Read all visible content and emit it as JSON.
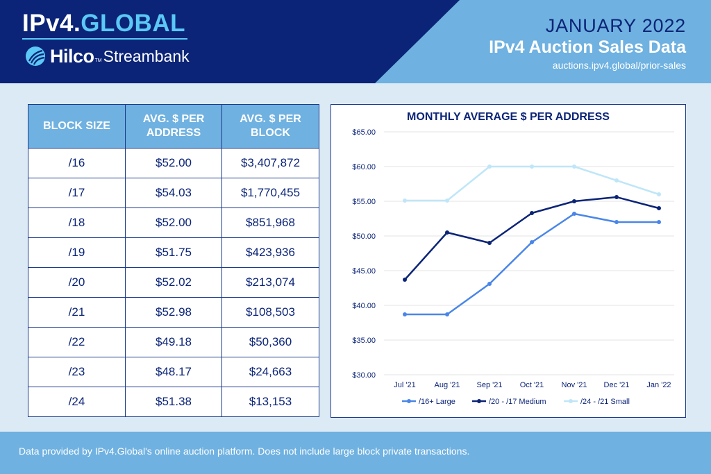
{
  "header": {
    "brand_main": "IPv4.",
    "brand_accent": "GLOBAL",
    "partner_name": "Hilco",
    "partner_tm": "TM",
    "partner_sub": "Streambank",
    "month": "JANUARY 2022",
    "title": "IPv4 Auction Sales Data",
    "url": "auctions.ipv4.global/prior-sales"
  },
  "table": {
    "headers": [
      "BLOCK SIZE",
      "AVG. $ PER ADDRESS",
      "AVG. $ PER BLOCK"
    ],
    "rows": [
      [
        "/16",
        "$52.00",
        "$3,407,872"
      ],
      [
        "/17",
        "$54.03",
        "$1,770,455"
      ],
      [
        "/18",
        "$52.00",
        "$851,968"
      ],
      [
        "/19",
        "$51.75",
        "$423,936"
      ],
      [
        "/20",
        "$52.02",
        "$213,074"
      ],
      [
        "/21",
        "$52.98",
        "$108,503"
      ],
      [
        "/22",
        "$49.18",
        "$50,360"
      ],
      [
        "/23",
        "$48.17",
        "$24,663"
      ],
      [
        "/24",
        "$51.38",
        "$13,153"
      ]
    ]
  },
  "chart_data": {
    "type": "line",
    "title": "MONTHLY AVERAGE $ PER ADDRESS",
    "xlabel": "",
    "ylabel": "",
    "categories": [
      "Jul '21",
      "Aug '21",
      "Sep '21",
      "Oct '21",
      "Nov '21",
      "Dec '21",
      "Jan '22"
    ],
    "ylim": [
      30,
      65
    ],
    "yticks": [
      "$30.00",
      "$35.00",
      "$40.00",
      "$45.00",
      "$50.00",
      "$55.00",
      "$60.00",
      "$65.00"
    ],
    "grid": true,
    "legend_position": "bottom",
    "series": [
      {
        "name": "/16+ Large",
        "color": "#4a86e8",
        "values": [
          38.7,
          38.7,
          43.1,
          49.1,
          53.2,
          52.0,
          52.0
        ]
      },
      {
        "name": "/20 - /17 Medium",
        "color": "#0b2477",
        "values": [
          43.7,
          50.5,
          49.0,
          53.3,
          55.0,
          55.6,
          54.0
        ]
      },
      {
        "name": "/24 - /21 Small",
        "color": "#bfe6f8",
        "values": [
          55.1,
          55.1,
          60.0,
          60.0,
          60.0,
          58.0,
          56.0
        ]
      }
    ]
  },
  "footer": {
    "note": "Data provided by IPv4.Global's online auction platform. Does not include large block private transactions."
  },
  "colors": {
    "navy": "#0b2477",
    "sky": "#6fb1e0",
    "background": "#dceaf6",
    "accent": "#5bc8f5"
  }
}
